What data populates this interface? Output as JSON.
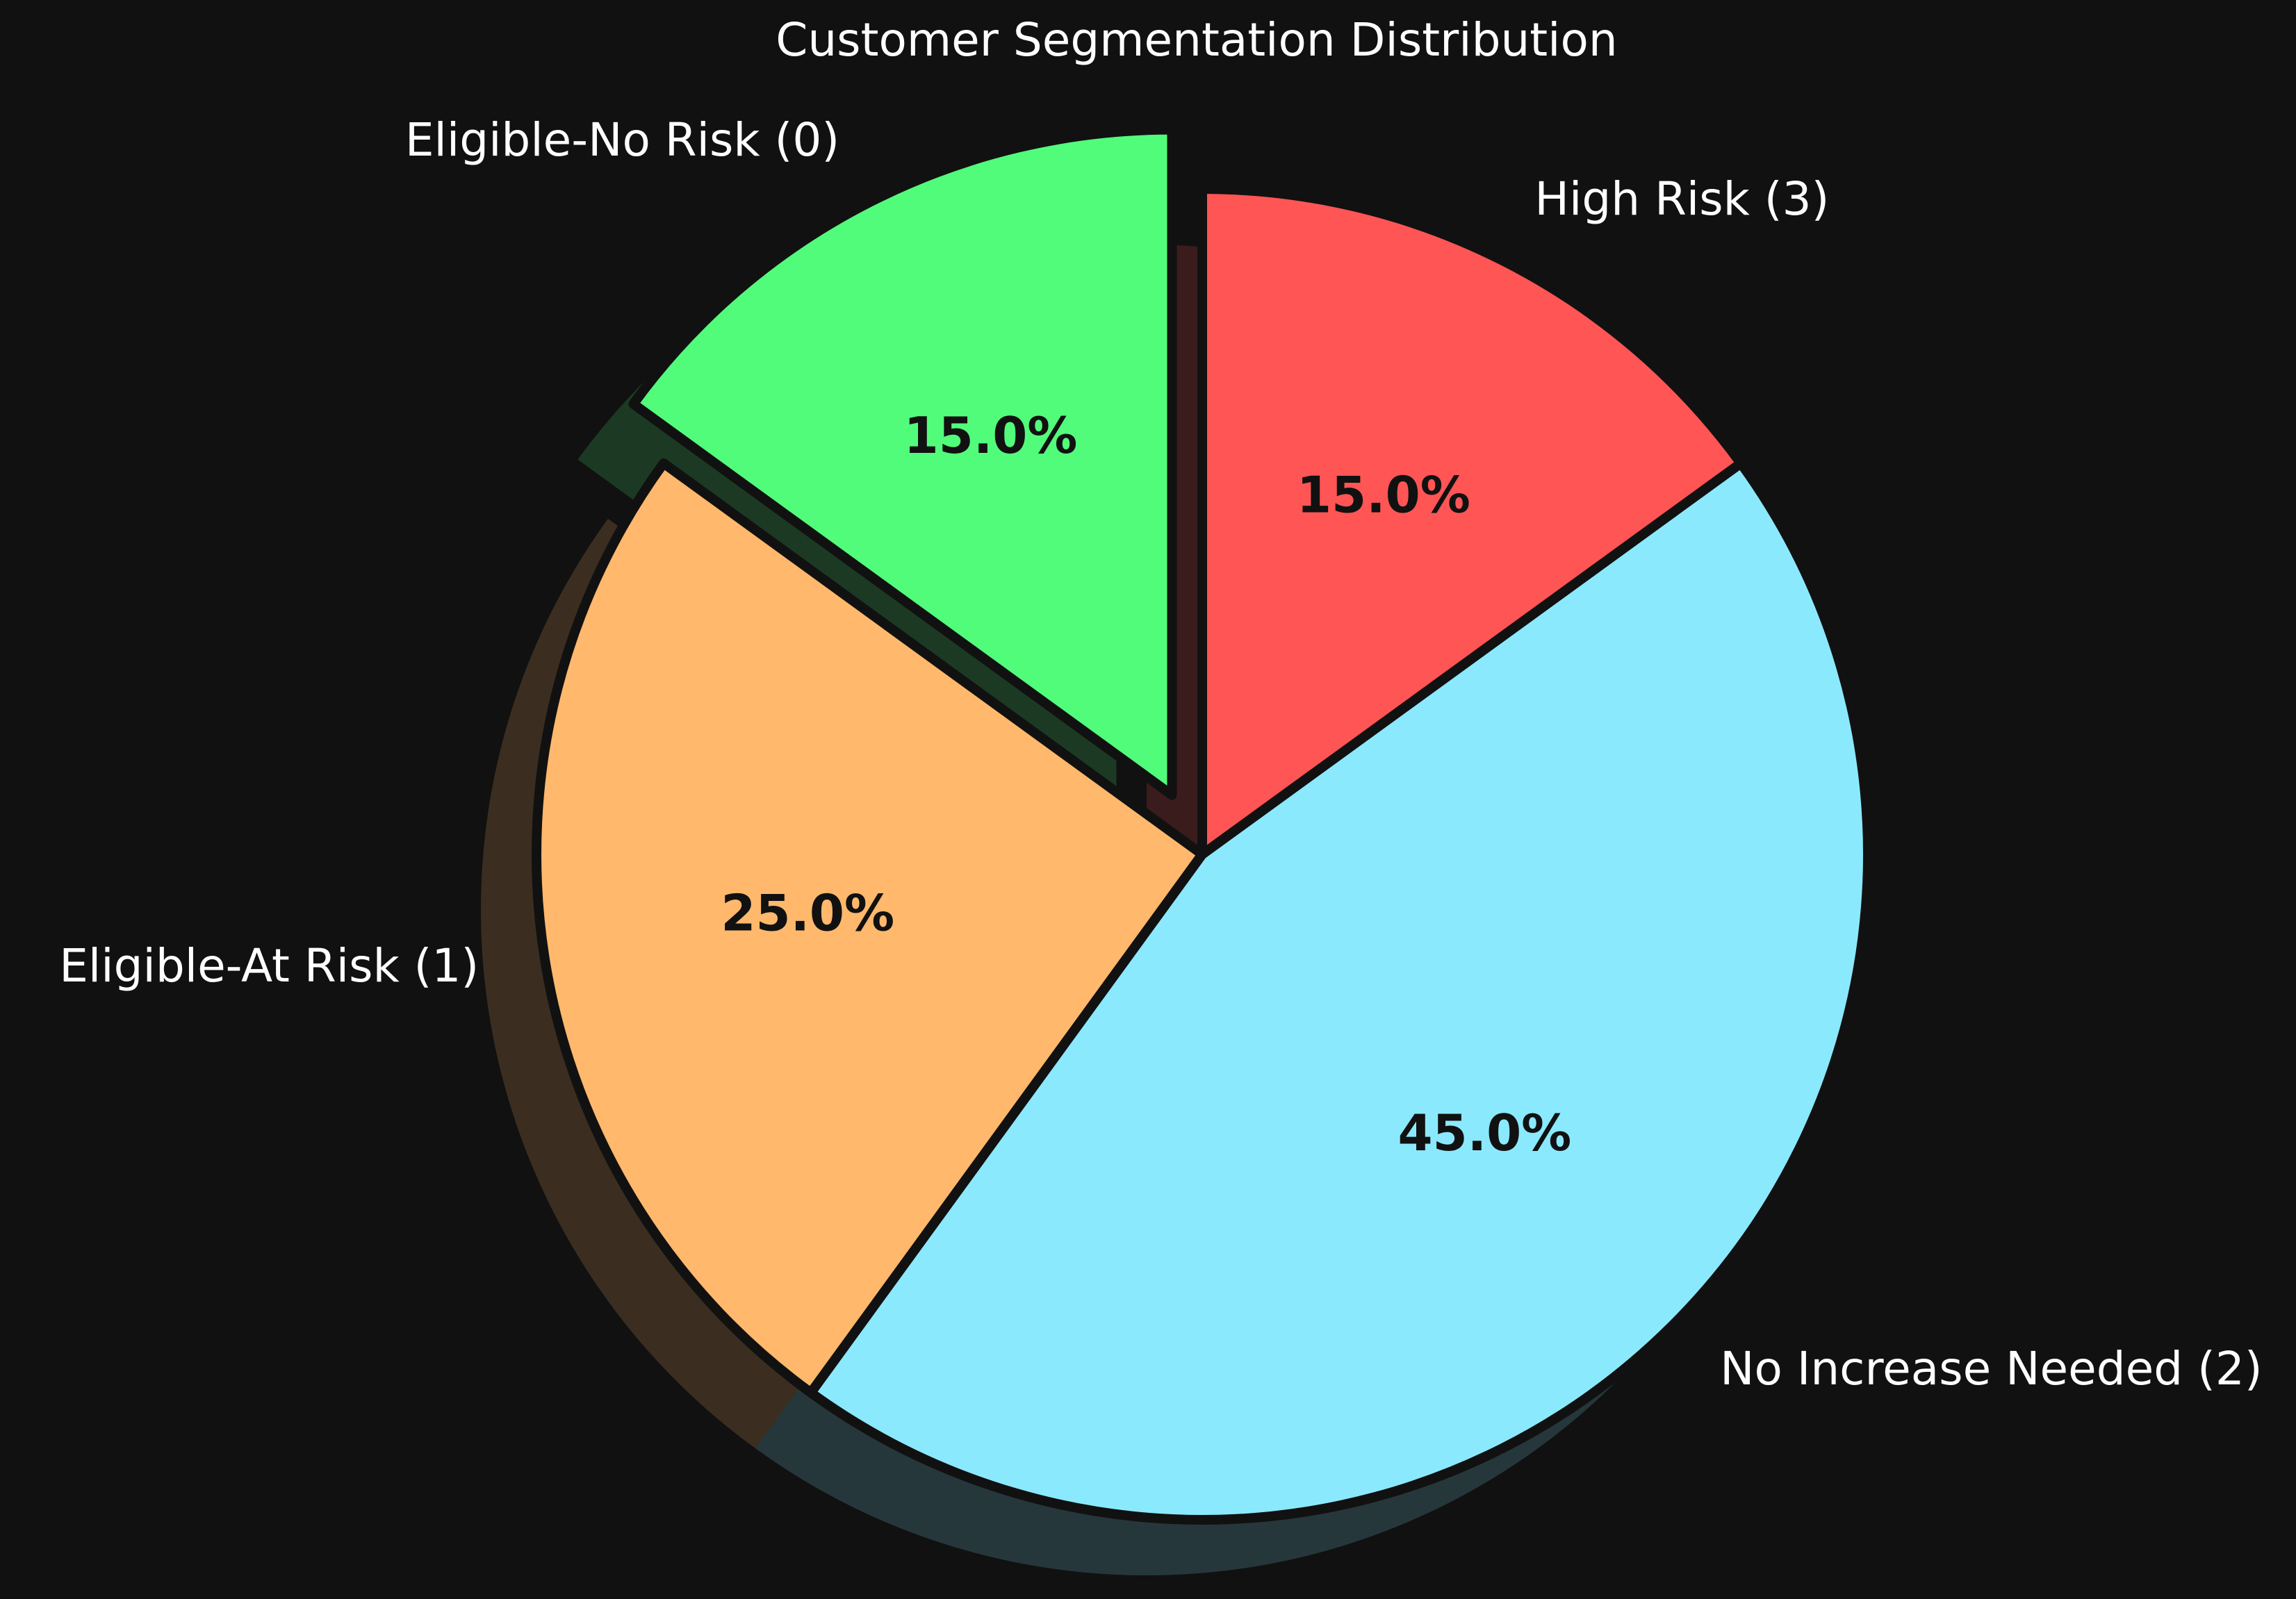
{
  "chart_data": {
    "type": "pie",
    "title": "Customer Segmentation Distribution",
    "start_angle_deg": 90,
    "direction": "counterclockwise",
    "shadow": true,
    "background": "#111111",
    "slices": [
      {
        "label": "Eligible-No Risk (0)",
        "value": 15.0,
        "pct_label": "15.0%",
        "color": "#52fc7b",
        "exploded": true
      },
      {
        "label": "Eligible-At Risk (1)",
        "value": 25.0,
        "pct_label": "25.0%",
        "color": "#ffb86c",
        "exploded": false
      },
      {
        "label": "No Increase Needed (2)",
        "value": 45.0,
        "pct_label": "45.0%",
        "color": "#8be9fd",
        "exploded": false
      },
      {
        "label": "High Risk (3)",
        "value": 15.0,
        "pct_label": "15.0%",
        "color": "#ff5555",
        "exploded": false
      }
    ]
  }
}
